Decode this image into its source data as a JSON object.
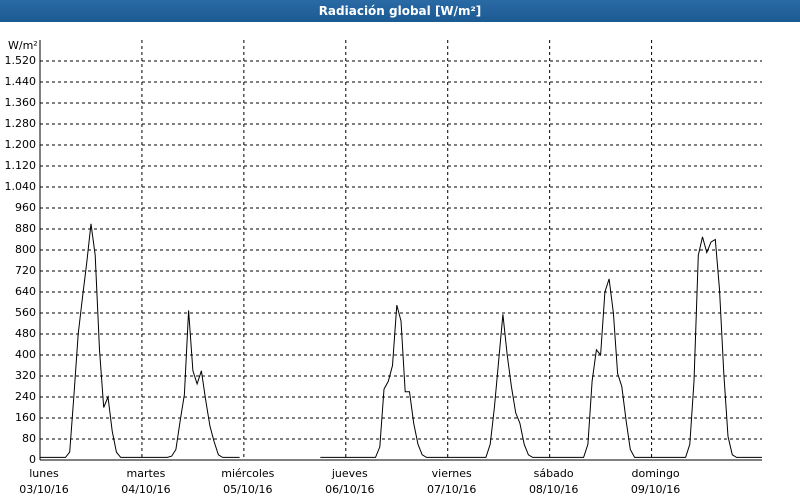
{
  "chart_data": {
    "type": "line",
    "title": "Radiación global [W/m²]",
    "y_label": "W/m²",
    "ylim": [
      0,
      1600
    ],
    "yticks": [
      0,
      80,
      160,
      240,
      320,
      400,
      480,
      560,
      640,
      720,
      800,
      880,
      960,
      {
        "value": 1040,
        "label": "1.040"
      },
      {
        "value": 1120,
        "label": "1.120"
      },
      {
        "value": 1200,
        "label": "1.200"
      },
      {
        "value": 1280,
        "label": "1.280"
      },
      {
        "value": 1360,
        "label": "1.360"
      },
      {
        "value": 1440,
        "label": "1.440"
      },
      {
        "value": 1520,
        "label": "1.520"
      }
    ],
    "xlim": [
      0,
      170
    ],
    "xticks": [
      {
        "value": 0,
        "label": "lunes",
        "date": "03/10/16"
      },
      {
        "value": 24,
        "label": "martes",
        "date": "04/10/16"
      },
      {
        "value": 48,
        "label": "miércoles",
        "date": "05/10/16"
      },
      {
        "value": 72,
        "label": "jueves",
        "date": "06/10/16"
      },
      {
        "value": 96,
        "label": "viernes",
        "date": "07/10/16"
      },
      {
        "value": 120,
        "label": "sábado",
        "date": "08/10/16"
      },
      {
        "value": 144,
        "label": "domingo",
        "date": "09/10/16"
      }
    ],
    "grid": true,
    "color": "#000000",
    "x": [
      0,
      1,
      2,
      3,
      4,
      5,
      6,
      7,
      8,
      9,
      10,
      11,
      12,
      13,
      14,
      15,
      16,
      17,
      18,
      19,
      20,
      21,
      22,
      23,
      24,
      25,
      26,
      27,
      28,
      29,
      30,
      31,
      32,
      33,
      34,
      35,
      36,
      37,
      38,
      39,
      40,
      41,
      42,
      43,
      44,
      45,
      46,
      47,
      48,
      49,
      50,
      51,
      52,
      53,
      54,
      55,
      56,
      57,
      58,
      59,
      60,
      61,
      62,
      63,
      64,
      65,
      66,
      67,
      68,
      69,
      70,
      71,
      72,
      73,
      74,
      75,
      76,
      77,
      78,
      79,
      80,
      81,
      82,
      83,
      84,
      85,
      86,
      87,
      88,
      89,
      90,
      91,
      92,
      93,
      94,
      95,
      96,
      97,
      98,
      99,
      100,
      101,
      102,
      103,
      104,
      105,
      106,
      107,
      108,
      109,
      110,
      111,
      112,
      113,
      114,
      115,
      116,
      117,
      118,
      119,
      120,
      121,
      122,
      123,
      124,
      125,
      126,
      127,
      128,
      129,
      130,
      131,
      132,
      133,
      134,
      135,
      136,
      137,
      138,
      139,
      140,
      141,
      142,
      143,
      144,
      145,
      146,
      147,
      148,
      149,
      150,
      151,
      152,
      153,
      154,
      155,
      156,
      157,
      158,
      159,
      160,
      161,
      162,
      163,
      164,
      165,
      166,
      167,
      168,
      169,
      170
    ],
    "values": [
      10,
      10,
      10,
      10,
      10,
      10,
      10,
      30,
      250,
      480,
      620,
      750,
      900,
      780,
      420,
      200,
      240,
      110,
      30,
      10,
      10,
      10,
      10,
      10,
      10,
      10,
      10,
      10,
      10,
      10,
      10,
      15,
      40,
      150,
      250,
      570,
      340,
      290,
      340,
      230,
      130,
      70,
      20,
      10,
      10,
      10,
      10,
      10,
      null,
      null,
      null,
      null,
      null,
      null,
      null,
      null,
      null,
      null,
      null,
      null,
      null,
      null,
      null,
      null,
      null,
      null,
      10,
      10,
      10,
      10,
      10,
      10,
      10,
      10,
      10,
      10,
      10,
      10,
      10,
      10,
      50,
      270,
      300,
      360,
      590,
      530,
      260,
      260,
      140,
      60,
      20,
      10,
      10,
      10,
      10,
      10,
      10,
      10,
      10,
      10,
      10,
      10,
      10,
      10,
      10,
      10,
      60,
      200,
      380,
      555,
      400,
      280,
      180,
      140,
      60,
      20,
      10,
      10,
      10,
      10,
      10,
      10,
      10,
      10,
      10,
      10,
      10,
      10,
      10,
      60,
      300,
      420,
      400,
      640,
      690,
      560,
      330,
      280,
      150,
      40,
      10,
      10,
      10,
      10,
      10,
      10,
      10,
      10,
      10,
      10,
      10,
      10,
      10,
      60,
      300,
      780,
      850,
      790,
      830,
      840,
      650,
      330,
      90,
      20,
      10,
      10,
      10,
      10,
      10,
      10,
      10
    ]
  }
}
